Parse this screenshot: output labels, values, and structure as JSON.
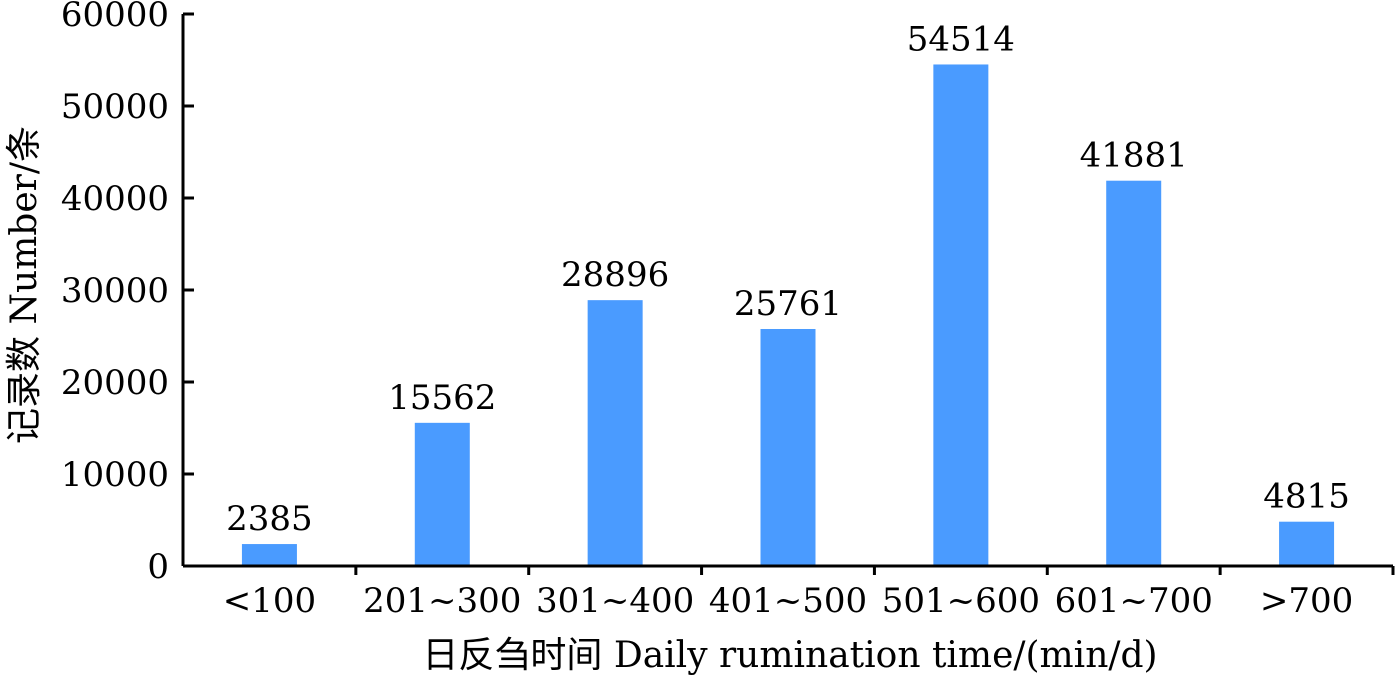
{
  "chart_data": {
    "type": "bar",
    "categories": [
      "<100",
      "201~300",
      "301~400",
      "401~500",
      "501~600",
      "601~700",
      ">700"
    ],
    "values": [
      2385,
      15562,
      28896,
      25761,
      54514,
      41881,
      4815
    ],
    "data_labels": [
      "2385",
      "15562",
      "28896",
      "25761",
      "54514",
      "41881",
      "4815"
    ],
    "xlabel": "日反刍时间 Daily rumination time/(min/d)",
    "ylabel": "记录数 Number/条",
    "ylim": [
      0,
      60000
    ],
    "yticks": [
      0,
      10000,
      20000,
      30000,
      40000,
      50000,
      60000
    ],
    "ytick_labels": [
      "0",
      "10000",
      "20000",
      "30000",
      "40000",
      "50000",
      "60000"
    ],
    "grid": false,
    "bar_color": "#4a9bff",
    "axis_color": "#000000"
  }
}
